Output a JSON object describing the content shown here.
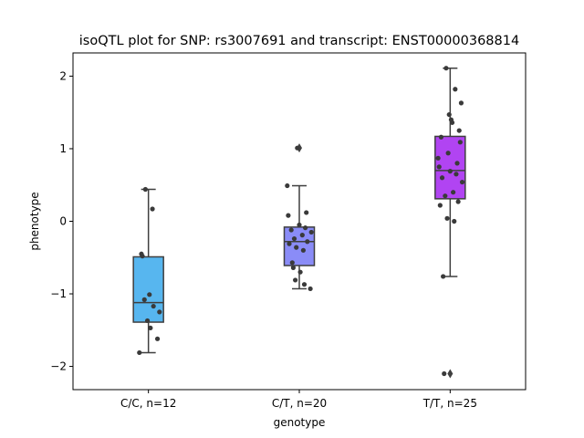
{
  "chart_data": {
    "type": "box",
    "title": "isoQTL plot for SNP: rs3007691 and transcript: ENST00000368814",
    "xlabel": "genotype",
    "ylabel": "phenotype",
    "ylim": [
      -2.32,
      2.32
    ],
    "yticks": [
      -2,
      -1,
      0,
      1,
      2
    ],
    "ytick_labels": [
      "−2",
      "−1",
      "0",
      "1",
      "2"
    ],
    "grid": false,
    "categories": [
      "C/C, n=12",
      "C/T, n=20",
      "T/T, n=25"
    ],
    "colors": [
      "#57b6ef",
      "#8a8cf7",
      "#b144f2"
    ],
    "boxes": [
      {
        "whislo": -1.81,
        "q1": -1.39,
        "med": -1.12,
        "q3": -0.49,
        "whishi": 0.44,
        "fliers": []
      },
      {
        "whislo": -0.93,
        "q1": -0.61,
        "med": -0.28,
        "q3": -0.08,
        "whishi": 0.49,
        "fliers": [
          1.01
        ]
      },
      {
        "whislo": -0.76,
        "q1": 0.31,
        "med": 0.7,
        "q3": 1.17,
        "whishi": 2.11,
        "fliers": [
          -2.1
        ]
      }
    ],
    "points": [
      [
        -1.81,
        -1.62,
        -1.47,
        -1.37,
        -1.25,
        -1.17,
        -1.08,
        -1.01,
        -0.48,
        -0.45,
        0.17,
        0.44
      ],
      [
        -0.93,
        -0.87,
        -0.81,
        -0.7,
        -0.64,
        -0.57,
        -0.4,
        -0.36,
        -0.31,
        -0.28,
        -0.24,
        -0.19,
        -0.15,
        -0.12,
        -0.09,
        -0.05,
        0.08,
        0.12,
        0.49,
        1.01
      ],
      [
        -2.1,
        -0.76,
        0.0,
        0.04,
        0.22,
        0.27,
        0.35,
        0.4,
        0.54,
        0.6,
        0.65,
        0.69,
        0.75,
        0.8,
        0.87,
        0.94,
        1.09,
        1.16,
        1.25,
        1.36,
        1.47,
        1.63,
        1.82,
        2.11,
        1.4
      ]
    ]
  }
}
